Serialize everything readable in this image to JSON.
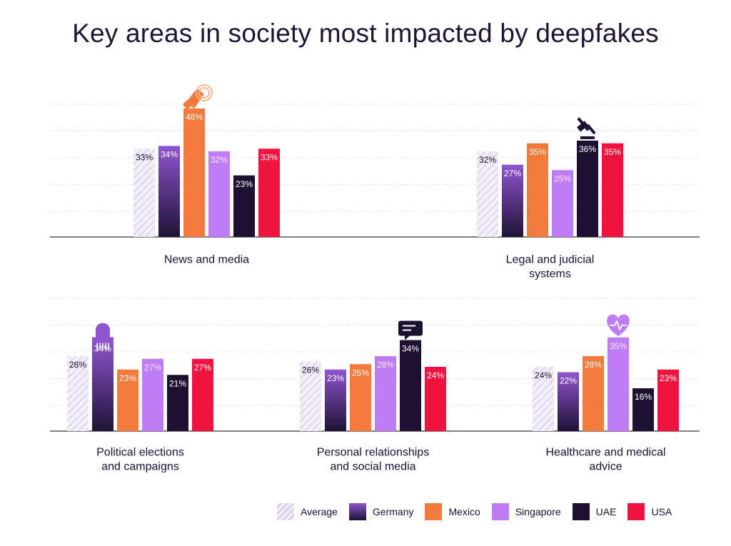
{
  "title": "Key areas in society most impacted by deepfakes",
  "colors": {
    "Average": "#e6dff0",
    "Germany": "#6b3fa0",
    "Mexico": "#f47a3c",
    "Singapore": "#c07cf4",
    "UAE": "#1d1030",
    "USA": "#f0123f"
  },
  "chart_data": {
    "type": "bar",
    "title": "Key areas in society most impacted by deepfakes",
    "series_names": [
      "Average",
      "Germany",
      "Mexico",
      "Singapore",
      "UAE",
      "USA"
    ],
    "unit": "%",
    "ylim": [
      0,
      50
    ],
    "grid": true,
    "legend_position": "bottom-right",
    "panels": [
      {
        "category": "News and media",
        "values": [
          33,
          34,
          48,
          32,
          23,
          33
        ],
        "icon": "megaphone-icon"
      },
      {
        "category": "Legal and judicial systems",
        "values": [
          32,
          27,
          35,
          25,
          36,
          35
        ],
        "icon": "gavel-icon"
      },
      {
        "category": "Political elections and campaigns",
        "values": [
          28,
          34,
          23,
          27,
          21,
          27
        ],
        "icon": "capitol-building-icon"
      },
      {
        "category": "Personal relationships and social media",
        "values": [
          26,
          23,
          25,
          28,
          34,
          24
        ],
        "icon": "chat-bubble-icon"
      },
      {
        "category": "Healthcare and medical advice",
        "values": [
          24,
          22,
          28,
          35,
          16,
          23
        ],
        "icon": "heart-pulse-icon"
      }
    ]
  },
  "category_label_lines": [
    [
      "News and media"
    ],
    [
      "Legal and judicial",
      "systems"
    ],
    [
      "Political elections",
      "and campaigns"
    ],
    [
      "Personal relationships",
      "and social media"
    ],
    [
      "Healthcare and medical",
      "advice"
    ]
  ],
  "legend": [
    {
      "label": "Average",
      "swatch": "hatched"
    },
    {
      "label": "Germany",
      "swatch": "gradient"
    },
    {
      "label": "Mexico",
      "swatch": "solid"
    },
    {
      "label": "Singapore",
      "swatch": "solid"
    },
    {
      "label": "UAE",
      "swatch": "solid"
    },
    {
      "label": "USA",
      "swatch": "solid"
    }
  ]
}
